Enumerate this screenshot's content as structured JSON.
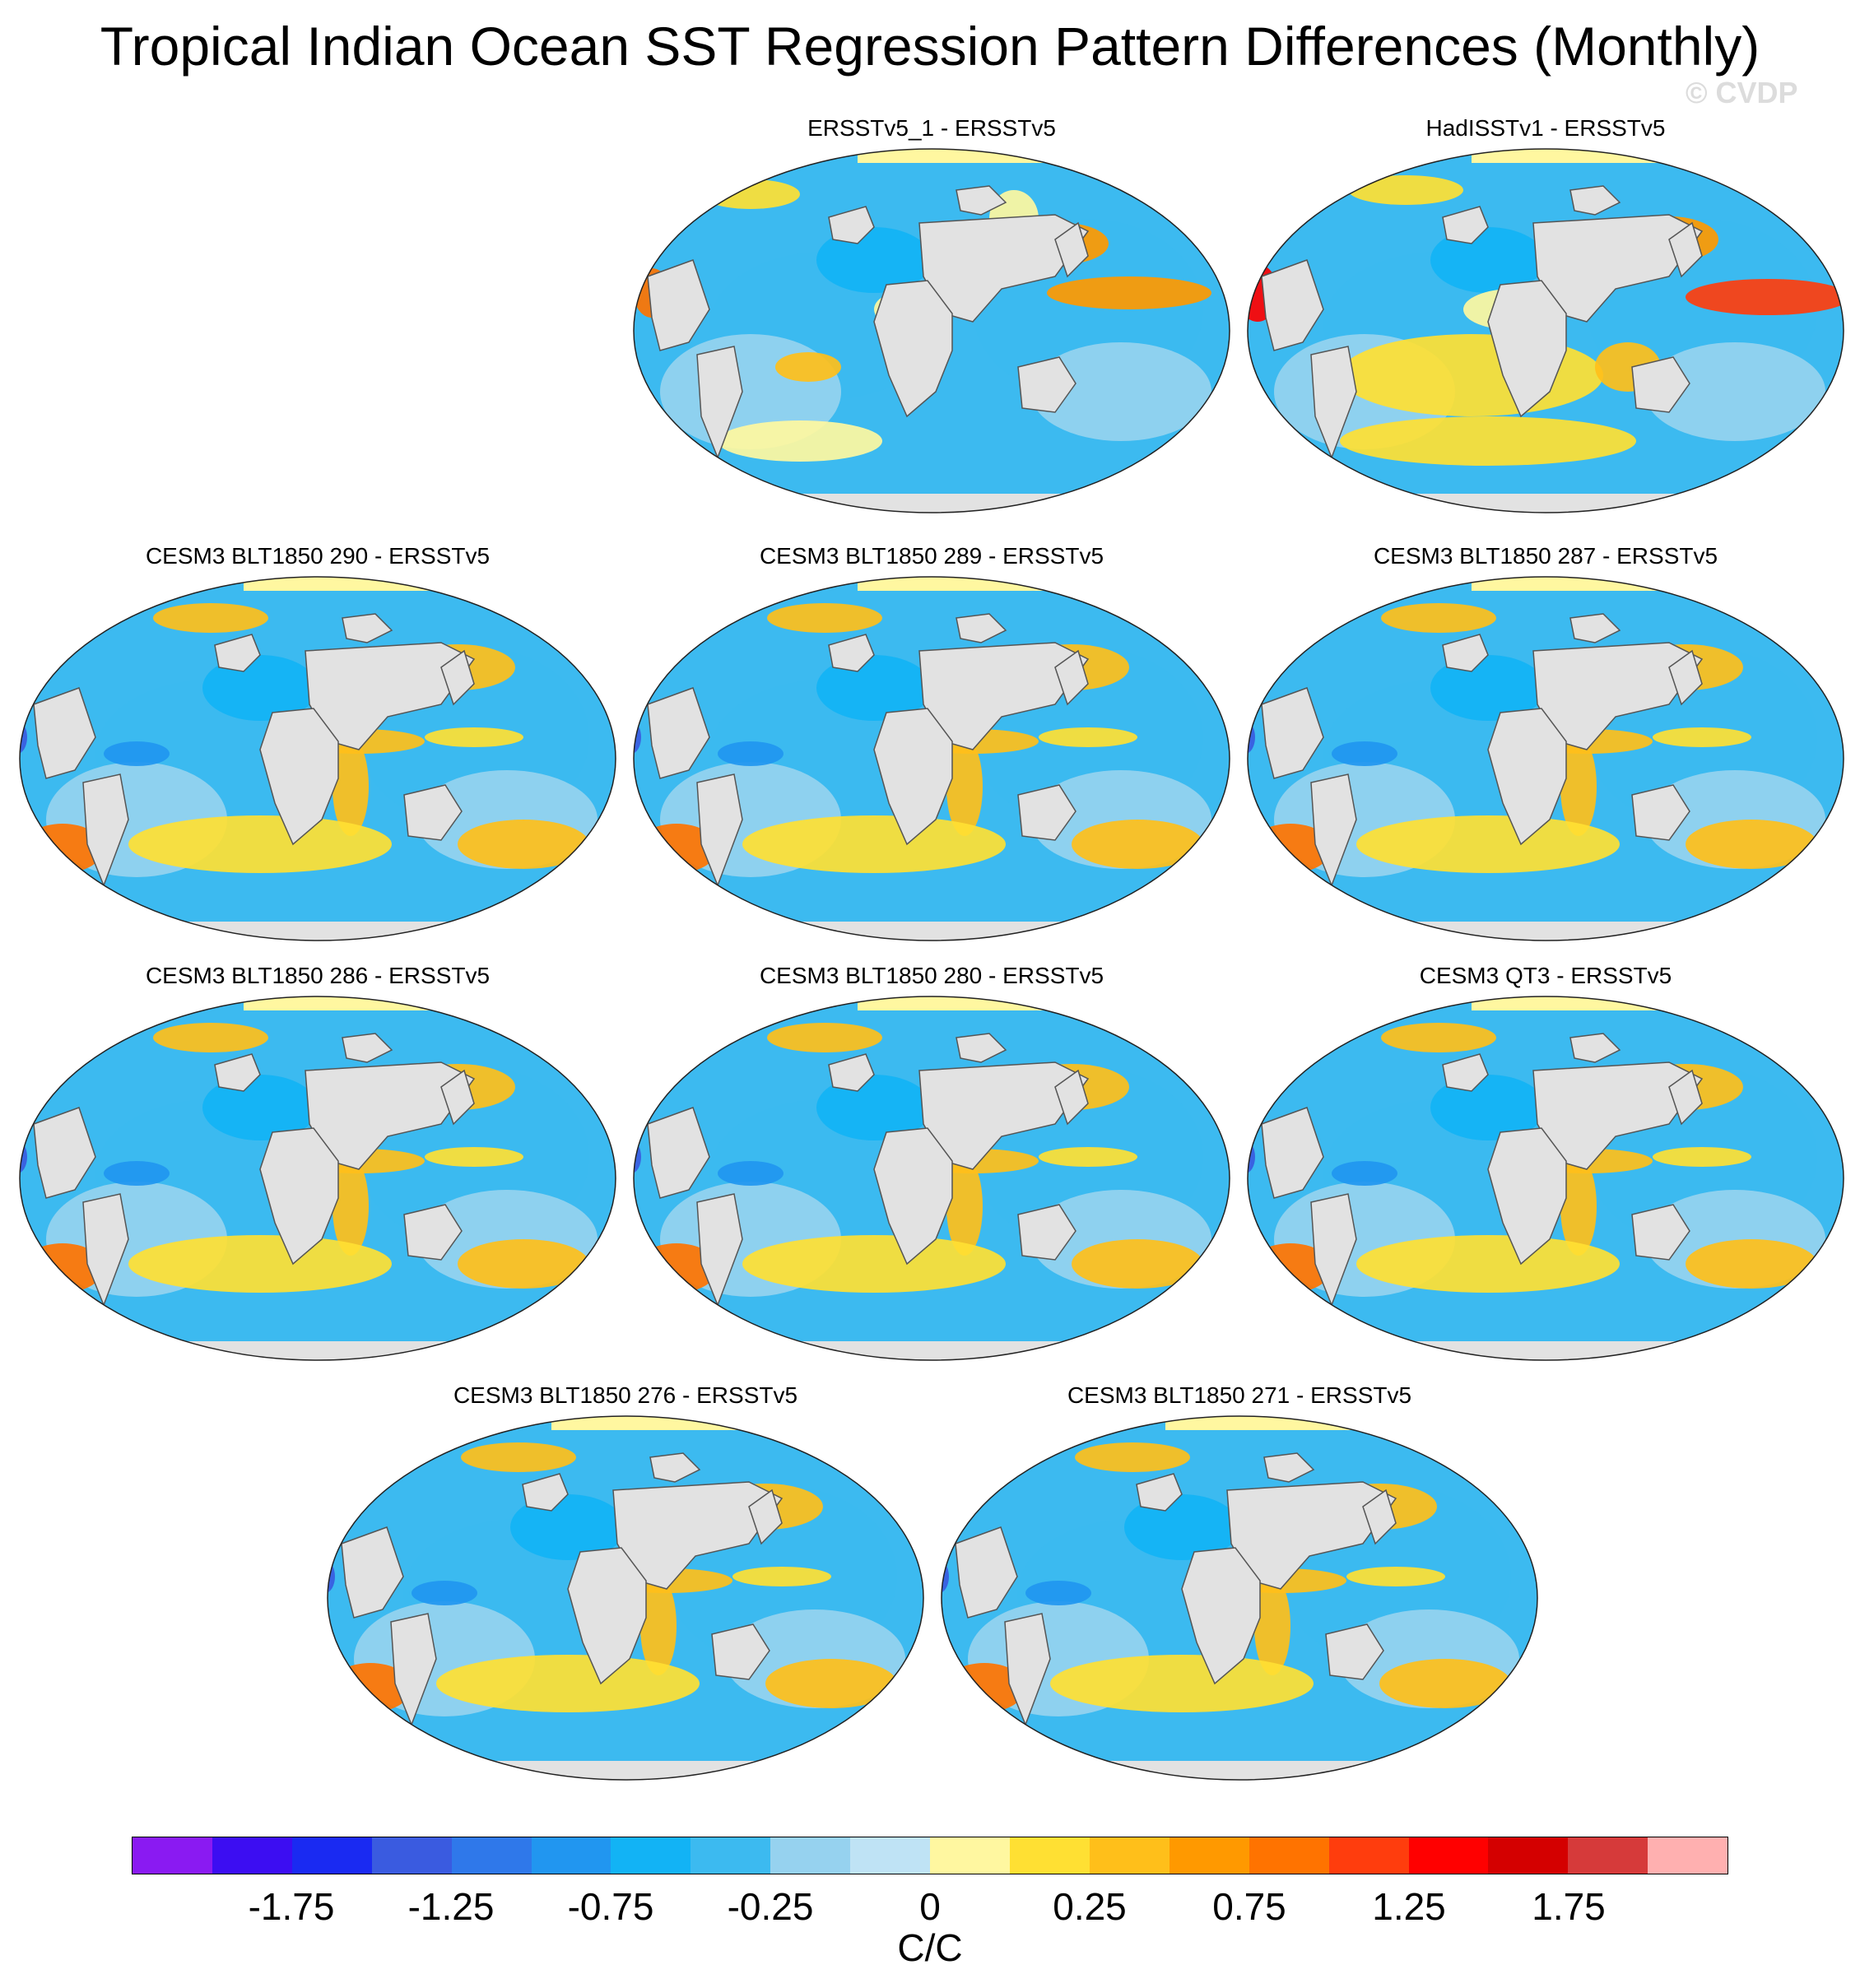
{
  "title": "Tropical Indian Ocean SST Regression Pattern Differences (Monthly)",
  "watermark": "© CVDP",
  "panels": [
    {
      "label": "ERSSTv5_1 - ERSSTv5",
      "pattern": "obs1"
    },
    {
      "label": "HadISSTv1 - ERSSTv5",
      "pattern": "obs2"
    },
    {
      "label": "CESM3 BLT1850 290 - ERSSTv5",
      "pattern": "model"
    },
    {
      "label": "CESM3 BLT1850 289 - ERSSTv5",
      "pattern": "model"
    },
    {
      "label": "CESM3 BLT1850 287 - ERSSTv5",
      "pattern": "model"
    },
    {
      "label": "CESM3 BLT1850 286 - ERSSTv5",
      "pattern": "model"
    },
    {
      "label": "CESM3 BLT1850 280 - ERSSTv5",
      "pattern": "model"
    },
    {
      "label": "CESM3 QT3 - ERSSTv5",
      "pattern": "model"
    },
    {
      "label": "CESM3 BLT1850 276 - ERSSTv5",
      "pattern": "model"
    },
    {
      "label": "CESM3 BLT1850 271 - ERSSTv5",
      "pattern": "model"
    }
  ],
  "colorbar": {
    "colors": [
      "#8a1af2",
      "#3c0df2",
      "#1a2af2",
      "#3a5be0",
      "#2f78ea",
      "#2196f0",
      "#12b3f5",
      "#3cbaf0",
      "#96d2ef",
      "#bfe3f5",
      "#fff7a0",
      "#ffe033",
      "#ffbf1a",
      "#ff9900",
      "#ff7300",
      "#ff3d0d",
      "#ff0000",
      "#d40000",
      "#d63a3a",
      "#ffb0b0"
    ],
    "tick_labels": [
      "-1.75",
      "-1.25",
      "-0.75",
      "-0.25",
      "0",
      "0.25",
      "0.75",
      "1.25",
      "1.75"
    ],
    "units": "C/C"
  },
  "chart_data": {
    "type": "heatmap",
    "title": "Tropical Indian Ocean SST Regression Pattern Differences (Monthly)",
    "units": "C/C",
    "levels": [
      -2.0,
      -1.75,
      -1.5,
      -1.25,
      -1.0,
      -0.75,
      -0.5,
      -0.25,
      -0.1,
      0,
      0.1,
      0.25,
      0.5,
      0.75,
      1.0,
      1.25,
      1.5,
      1.75,
      2.0
    ],
    "panels": [
      "ERSSTv5_1 - ERSSTv5",
      "HadISSTv1 - ERSSTv5",
      "CESM3 BLT1850 290 - ERSSTv5",
      "CESM3 BLT1850 289 - ERSSTv5",
      "CESM3 BLT1850 287 - ERSSTv5",
      "CESM3 BLT1850 286 - ERSSTv5",
      "CESM3 BLT1850 280 - ERSSTv5",
      "CESM3 QT3 - ERSSTv5",
      "CESM3 BLT1850 276 - ERSSTv5",
      "CESM3 BLT1850 271 - ERSSTv5"
    ]
  }
}
